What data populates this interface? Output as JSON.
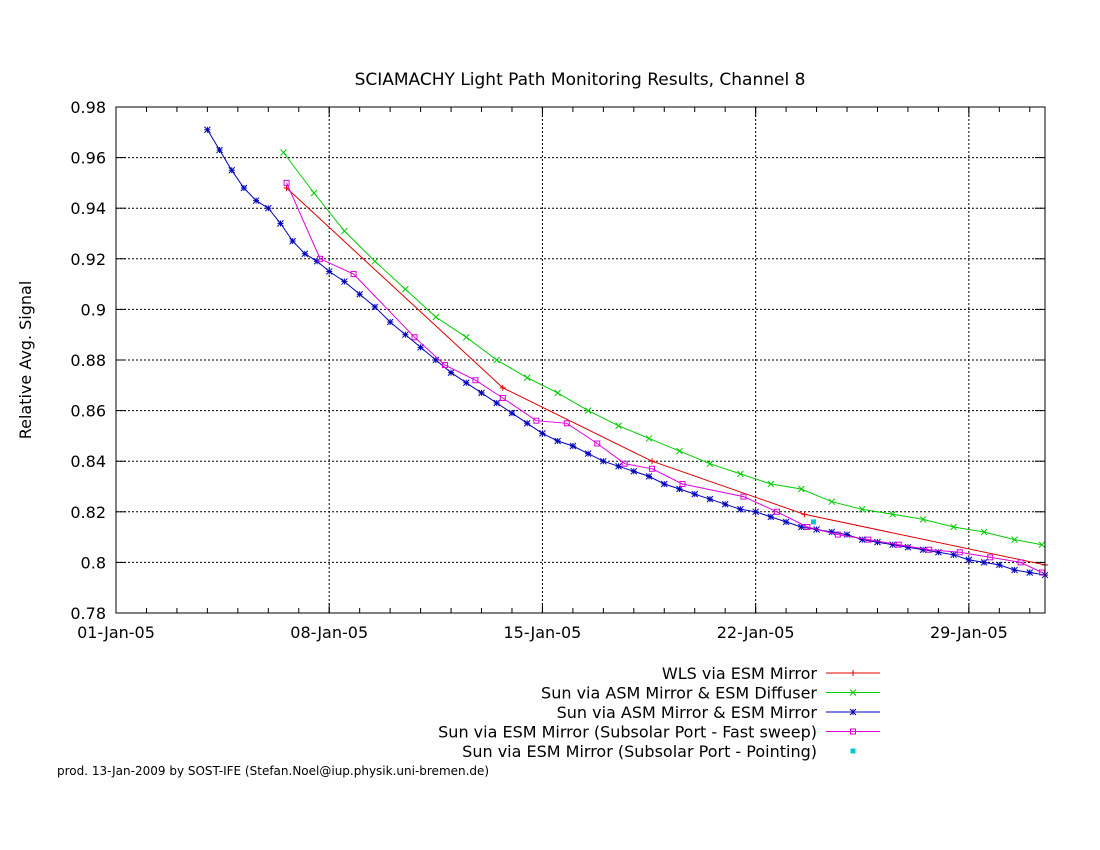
{
  "chart_data": {
    "type": "line",
    "title": "SCIAMACHY Light Path Monitoring Results, Channel 8",
    "xlabel": "",
    "ylabel": "Relative Avg. Signal",
    "x_unit": "date (2005-01)",
    "xlim": [
      "2005-01-01",
      "2005-01-31.5"
    ],
    "ylim": [
      0.78,
      0.98
    ],
    "x_ticks": [
      {
        "date": "2005-01-01",
        "label": "01-Jan-05"
      },
      {
        "date": "2005-01-08",
        "label": "08-Jan-05"
      },
      {
        "date": "2005-01-15",
        "label": "15-Jan-05"
      },
      {
        "date": "2005-01-22",
        "label": "22-Jan-05"
      },
      {
        "date": "2005-01-29",
        "label": "29-Jan-05"
      }
    ],
    "y_ticks": [
      {
        "value": 0.78,
        "label": "0.78"
      },
      {
        "value": 0.8,
        "label": "0.8"
      },
      {
        "value": 0.82,
        "label": "0.82"
      },
      {
        "value": 0.84,
        "label": "0.84"
      },
      {
        "value": 0.86,
        "label": "0.86"
      },
      {
        "value": 0.88,
        "label": "0.88"
      },
      {
        "value": 0.9,
        "label": "0.9"
      },
      {
        "value": 0.92,
        "label": "0.92"
      },
      {
        "value": 0.94,
        "label": "0.94"
      },
      {
        "value": 0.96,
        "label": "0.96"
      },
      {
        "value": 0.98,
        "label": "0.98"
      }
    ],
    "grid": true,
    "legend_position": "below-right",
    "series": [
      {
        "name": "WLS via ESM Mirror",
        "color": "#dd0000",
        "marker": "plus",
        "line": true,
        "points": [
          [
            "2005-01-06.6",
            0.948
          ],
          [
            "2005-01-13.7",
            0.869
          ],
          [
            "2005-01-18.6",
            0.84
          ],
          [
            "2005-01-23.6",
            0.819
          ],
          [
            "2005-01-31.5",
            0.799
          ]
        ]
      },
      {
        "name": "Sun via ASM Mirror & ESM Diffuser",
        "color": "#00cc00",
        "marker": "cross",
        "line": true,
        "points": [
          [
            "2005-01-06.5",
            0.962
          ],
          [
            "2005-01-07.5",
            0.946
          ],
          [
            "2005-01-08.5",
            0.931
          ],
          [
            "2005-01-09.5",
            0.919
          ],
          [
            "2005-01-10.5",
            0.908
          ],
          [
            "2005-01-11.5",
            0.897
          ],
          [
            "2005-01-12.5",
            0.889
          ],
          [
            "2005-01-13.5",
            0.88
          ],
          [
            "2005-01-14.5",
            0.873
          ],
          [
            "2005-01-15.5",
            0.867
          ],
          [
            "2005-01-16.5",
            0.86
          ],
          [
            "2005-01-17.5",
            0.854
          ],
          [
            "2005-01-18.5",
            0.849
          ],
          [
            "2005-01-19.5",
            0.844
          ],
          [
            "2005-01-20.5",
            0.839
          ],
          [
            "2005-01-21.5",
            0.835
          ],
          [
            "2005-01-22.5",
            0.831
          ],
          [
            "2005-01-23.5",
            0.829
          ],
          [
            "2005-01-24.5",
            0.824
          ],
          [
            "2005-01-25.5",
            0.821
          ],
          [
            "2005-01-26.5",
            0.819
          ],
          [
            "2005-01-27.5",
            0.817
          ],
          [
            "2005-01-28.5",
            0.814
          ],
          [
            "2005-01-29.5",
            0.812
          ],
          [
            "2005-01-30.5",
            0.809
          ],
          [
            "2005-01-31.4",
            0.807
          ]
        ]
      },
      {
        "name": "Sun via ASM Mirror & ESM Mirror",
        "color": "#0000bb",
        "marker": "star",
        "line": true,
        "points": [
          [
            "2005-01-04.0",
            0.971
          ],
          [
            "2005-01-04.4",
            0.963
          ],
          [
            "2005-01-04.8",
            0.955
          ],
          [
            "2005-01-05.2",
            0.948
          ],
          [
            "2005-01-05.6",
            0.943
          ],
          [
            "2005-01-06.0",
            0.94
          ],
          [
            "2005-01-06.4",
            0.934
          ],
          [
            "2005-01-06.8",
            0.927
          ],
          [
            "2005-01-07.2",
            0.922
          ],
          [
            "2005-01-07.6",
            0.919
          ],
          [
            "2005-01-08.0",
            0.915
          ],
          [
            "2005-01-08.5",
            0.911
          ],
          [
            "2005-01-09.0",
            0.906
          ],
          [
            "2005-01-09.5",
            0.901
          ],
          [
            "2005-01-10.0",
            0.895
          ],
          [
            "2005-01-10.5",
            0.89
          ],
          [
            "2005-01-11.0",
            0.885
          ],
          [
            "2005-01-11.5",
            0.88
          ],
          [
            "2005-01-12.0",
            0.875
          ],
          [
            "2005-01-12.5",
            0.871
          ],
          [
            "2005-01-13.0",
            0.867
          ],
          [
            "2005-01-13.5",
            0.863
          ],
          [
            "2005-01-14.0",
            0.859
          ],
          [
            "2005-01-14.5",
            0.855
          ],
          [
            "2005-01-15.0",
            0.851
          ],
          [
            "2005-01-15.5",
            0.848
          ],
          [
            "2005-01-16.0",
            0.846
          ],
          [
            "2005-01-16.5",
            0.843
          ],
          [
            "2005-01-17.0",
            0.84
          ],
          [
            "2005-01-17.5",
            0.838
          ],
          [
            "2005-01-18.0",
            0.836
          ],
          [
            "2005-01-18.5",
            0.834
          ],
          [
            "2005-01-19.0",
            0.831
          ],
          [
            "2005-01-19.5",
            0.829
          ],
          [
            "2005-01-20.0",
            0.827
          ],
          [
            "2005-01-20.5",
            0.825
          ],
          [
            "2005-01-21.0",
            0.823
          ],
          [
            "2005-01-21.5",
            0.821
          ],
          [
            "2005-01-22.0",
            0.82
          ],
          [
            "2005-01-22.5",
            0.818
          ],
          [
            "2005-01-23.0",
            0.816
          ],
          [
            "2005-01-23.5",
            0.814
          ],
          [
            "2005-01-24.0",
            0.813
          ],
          [
            "2005-01-24.5",
            0.812
          ],
          [
            "2005-01-25.0",
            0.811
          ],
          [
            "2005-01-25.5",
            0.809
          ],
          [
            "2005-01-26.0",
            0.808
          ],
          [
            "2005-01-26.5",
            0.807
          ],
          [
            "2005-01-27.0",
            0.806
          ],
          [
            "2005-01-27.5",
            0.805
          ],
          [
            "2005-01-28.0",
            0.804
          ],
          [
            "2005-01-28.5",
            0.803
          ],
          [
            "2005-01-29.0",
            0.801
          ],
          [
            "2005-01-29.5",
            0.8
          ],
          [
            "2005-01-30.0",
            0.799
          ],
          [
            "2005-01-30.5",
            0.797
          ],
          [
            "2005-01-31.0",
            0.796
          ],
          [
            "2005-01-31.5",
            0.795
          ]
        ]
      },
      {
        "name": "Sun via ESM Mirror (Subsolar Port - Fast sweep)",
        "color": "#dd00dd",
        "marker": "square",
        "line": true,
        "points": [
          [
            "2005-01-06.6",
            0.95
          ],
          [
            "2005-01-07.7",
            0.92
          ],
          [
            "2005-01-08.8",
            0.914
          ],
          [
            "2005-01-10.8",
            0.889
          ],
          [
            "2005-01-11.8",
            0.878
          ],
          [
            "2005-01-12.8",
            0.872
          ],
          [
            "2005-01-13.7",
            0.865
          ],
          [
            "2005-01-14.8",
            0.856
          ],
          [
            "2005-01-15.8",
            0.855
          ],
          [
            "2005-01-16.8",
            0.847
          ],
          [
            "2005-01-17.7",
            0.839
          ],
          [
            "2005-01-18.6",
            0.837
          ],
          [
            "2005-01-19.6",
            0.831
          ],
          [
            "2005-01-21.6",
            0.826
          ],
          [
            "2005-01-22.7",
            0.82
          ],
          [
            "2005-01-23.7",
            0.814
          ],
          [
            "2005-01-24.7",
            0.811
          ],
          [
            "2005-01-25.7",
            0.809
          ],
          [
            "2005-01-26.7",
            0.807
          ],
          [
            "2005-01-27.7",
            0.805
          ],
          [
            "2005-01-28.7",
            0.804
          ],
          [
            "2005-01-29.7",
            0.802
          ],
          [
            "2005-01-30.7",
            0.8
          ],
          [
            "2005-01-31.4",
            0.796
          ]
        ]
      },
      {
        "name": "Sun via ESM Mirror (Subsolar Port - Pointing)",
        "color": "#00cccc",
        "marker": "dot",
        "line": false,
        "points": [
          [
            "2005-01-23.9",
            0.816
          ]
        ]
      }
    ]
  },
  "footer": "prod. 13-Jan-2009 by SOST-IFE (Stefan.Noel@iup.physik.uni-bremen.de)"
}
